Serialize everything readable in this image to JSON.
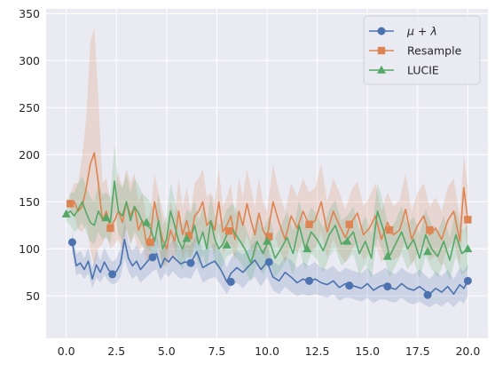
{
  "chart_data": {
    "type": "line",
    "x_ticks": [
      "0.0",
      "2.5",
      "5.0",
      "7.5",
      "10.0",
      "12.5",
      "15.0",
      "17.5",
      "20.0"
    ],
    "y_ticks": [
      "50",
      "100",
      "150",
      "200",
      "250",
      "300",
      "350"
    ],
    "xlim": [
      -1.0,
      21.0
    ],
    "ylim": [
      5,
      355
    ],
    "grid": true,
    "legend_position": "top-right",
    "colors": {
      "background": "#eaeaf2",
      "grid": "#ffffff",
      "text": "#262626"
    },
    "series": [
      {
        "name": "μ + λ",
        "label_prefix": "μ",
        "label_suffix": " + λ",
        "color": "#4c72b0",
        "marker": "circle",
        "x": [
          0.3,
          0.5,
          0.7,
          0.9,
          1.1,
          1.3,
          1.5,
          1.7,
          1.9,
          2.1,
          2.3,
          2.5,
          2.7,
          2.9,
          3.1,
          3.3,
          3.5,
          3.7,
          3.9,
          4.1,
          4.3,
          4.5,
          4.7,
          4.9,
          5.1,
          5.3,
          5.5,
          5.7,
          5.9,
          6.2,
          6.5,
          6.8,
          7.1,
          7.4,
          7.7,
          8.0,
          8.2,
          8.5,
          8.8,
          9.1,
          9.4,
          9.7,
          10.0,
          10.3,
          10.6,
          10.9,
          11.2,
          11.5,
          11.8,
          12.1,
          12.4,
          12.7,
          13.0,
          13.3,
          13.6,
          13.9,
          14.1,
          14.4,
          14.7,
          15.0,
          15.3,
          15.6,
          15.9,
          16.1,
          16.4,
          16.7,
          17.0,
          17.3,
          17.6,
          17.9,
          18.1,
          18.4,
          18.7,
          19.0,
          19.3,
          19.6,
          19.8,
          20.0
        ],
        "y": [
          107,
          82,
          85,
          78,
          87,
          68,
          83,
          75,
          86,
          78,
          73,
          76,
          84,
          110,
          90,
          82,
          87,
          78,
          83,
          88,
          92,
          95,
          80,
          90,
          86,
          92,
          88,
          84,
          86,
          85,
          97,
          80,
          84,
          87,
          78,
          65,
          74,
          80,
          75,
          82,
          88,
          78,
          86,
          70,
          66,
          75,
          70,
          64,
          68,
          65,
          68,
          64,
          62,
          66,
          59,
          63,
          62,
          60,
          58,
          63,
          56,
          60,
          62,
          59,
          57,
          63,
          58,
          56,
          60,
          55,
          52,
          58,
          54,
          60,
          52,
          62,
          58,
          66
        ],
        "band_lo": [
          96,
          72,
          74,
          68,
          74,
          58,
          70,
          64,
          72,
          66,
          62,
          64,
          70,
          90,
          76,
          68,
          72,
          64,
          68,
          72,
          76,
          78,
          66,
          74,
          70,
          76,
          72,
          68,
          70,
          68,
          80,
          64,
          68,
          70,
          62,
          52,
          60,
          64,
          58,
          66,
          70,
          60,
          70,
          56,
          52,
          60,
          54,
          50,
          52,
          50,
          52,
          50,
          48,
          52,
          45,
          48,
          48,
          46,
          44,
          48,
          42,
          46,
          46,
          44,
          43,
          48,
          43,
          41,
          44,
          40,
          38,
          42,
          39,
          44,
          38,
          45,
          42,
          50
        ],
        "band_hi": [
          118,
          94,
          98,
          90,
          102,
          80,
          98,
          88,
          102,
          92,
          86,
          90,
          100,
          132,
          106,
          98,
          104,
          94,
          100,
          106,
          110,
          114,
          96,
          108,
          104,
          110,
          106,
          102,
          104,
          104,
          116,
          98,
          102,
          106,
          96,
          80,
          90,
          98,
          94,
          100,
          108,
          98,
          104,
          86,
          82,
          92,
          88,
          80,
          86,
          82,
          86,
          80,
          78,
          82,
          75,
          80,
          78,
          76,
          74,
          80,
          72,
          76,
          80,
          76,
          73,
          80,
          75,
          73,
          78,
          72,
          68,
          76,
          71,
          78,
          68,
          80,
          76,
          84
        ],
        "markers_x": [
          0.3,
          2.3,
          4.3,
          6.2,
          8.2,
          10.1,
          12.1,
          14.1,
          16.0,
          18.0,
          20.0
        ],
        "markers_y": [
          107,
          73,
          91,
          85,
          65,
          86,
          66,
          61,
          60,
          51,
          66
        ]
      },
      {
        "name": "Resample",
        "label_prefix": "Resample",
        "label_suffix": "",
        "color": "#dd8452",
        "marker": "square",
        "x": [
          0.2,
          0.4,
          0.6,
          0.8,
          1.0,
          1.2,
          1.4,
          1.6,
          1.8,
          2.0,
          2.2,
          2.4,
          2.6,
          2.8,
          3.0,
          3.2,
          3.4,
          3.6,
          3.8,
          4.0,
          4.2,
          4.4,
          4.6,
          4.8,
          5.0,
          5.2,
          5.4,
          5.6,
          5.8,
          6.0,
          6.2,
          6.4,
          6.6,
          6.8,
          7.0,
          7.2,
          7.4,
          7.6,
          7.8,
          8.0,
          8.2,
          8.4,
          8.6,
          8.8,
          9.0,
          9.2,
          9.4,
          9.6,
          9.8,
          10.0,
          10.3,
          10.6,
          10.9,
          11.2,
          11.5,
          11.8,
          12.1,
          12.4,
          12.7,
          13.0,
          13.3,
          13.6,
          13.9,
          14.2,
          14.5,
          14.8,
          15.1,
          15.4,
          15.7,
          16.0,
          16.3,
          16.6,
          16.9,
          17.2,
          17.5,
          17.8,
          18.1,
          18.4,
          18.7,
          19.0,
          19.3,
          19.6,
          19.8,
          20.0
        ],
        "y": [
          148,
          150,
          140,
          145,
          165,
          190,
          202,
          170,
          130,
          140,
          122,
          130,
          140,
          128,
          150,
          135,
          145,
          120,
          130,
          105,
          115,
          150,
          128,
          110,
          100,
          120,
          108,
          140,
          115,
          130,
          112,
          135,
          140,
          150,
          125,
          130,
          120,
          150,
          118,
          125,
          135,
          110,
          140,
          125,
          148,
          130,
          115,
          138,
          120,
          112,
          150,
          128,
          110,
          135,
          122,
          140,
          125,
          130,
          150,
          118,
          140,
          125,
          112,
          128,
          138,
          115,
          122,
          135,
          110,
          128,
          115,
          120,
          142,
          110,
          125,
          135,
          115,
          122,
          110,
          130,
          140,
          108,
          165,
          130
        ],
        "band_lo": [
          138,
          135,
          120,
          118,
          125,
          100,
          80,
          100,
          105,
          115,
          100,
          105,
          110,
          100,
          120,
          105,
          115,
          95,
          105,
          85,
          95,
          120,
          100,
          85,
          80,
          95,
          85,
          110,
          90,
          100,
          90,
          105,
          110,
          120,
          100,
          105,
          95,
          120,
          95,
          100,
          105,
          88,
          110,
          100,
          115,
          100,
          90,
          108,
          95,
          88,
          118,
          100,
          85,
          105,
          95,
          110,
          95,
          100,
          118,
          90,
          110,
          95,
          85,
          98,
          108,
          88,
          95,
          105,
          85,
          98,
          88,
          92,
          110,
          82,
          95,
          105,
          88,
          92,
          82,
          100,
          108,
          82,
          130,
          100
        ],
        "band_hi": [
          158,
          170,
          170,
          200,
          240,
          320,
          335,
          260,
          170,
          175,
          150,
          165,
          180,
          165,
          185,
          170,
          180,
          150,
          160,
          130,
          140,
          180,
          160,
          140,
          125,
          150,
          135,
          175,
          145,
          165,
          140,
          170,
          175,
          185,
          155,
          160,
          150,
          185,
          145,
          155,
          170,
          135,
          175,
          155,
          185,
          165,
          145,
          175,
          150,
          140,
          190,
          160,
          140,
          170,
          155,
          175,
          160,
          165,
          190,
          150,
          175,
          160,
          142,
          162,
          172,
          145,
          155,
          170,
          140,
          160,
          145,
          152,
          180,
          140,
          160,
          170,
          145,
          155,
          140,
          165,
          175,
          135,
          200,
          165
        ],
        "markers_x": [
          0.2,
          2.2,
          4.2,
          6.1,
          8.1,
          10.1,
          12.1,
          14.1,
          16.1,
          18.1,
          20.0
        ],
        "markers_y": [
          148,
          122,
          107,
          114,
          119,
          113,
          126,
          126,
          120,
          120,
          131
        ]
      },
      {
        "name": "LUCIE",
        "label_prefix": "LUCIE",
        "label_suffix": "",
        "color": "#55a868",
        "marker": "triangle",
        "x": [
          0.0,
          0.2,
          0.4,
          0.6,
          0.8,
          1.0,
          1.2,
          1.4,
          1.6,
          1.8,
          2.0,
          2.2,
          2.4,
          2.6,
          2.8,
          3.0,
          3.2,
          3.4,
          3.6,
          3.8,
          4.0,
          4.2,
          4.4,
          4.6,
          4.8,
          5.0,
          5.2,
          5.4,
          5.6,
          5.8,
          6.0,
          6.2,
          6.4,
          6.6,
          6.8,
          7.0,
          7.2,
          7.4,
          7.6,
          7.8,
          8.0,
          8.3,
          8.6,
          8.9,
          9.2,
          9.5,
          9.8,
          10.1,
          10.4,
          10.7,
          11.0,
          11.3,
          11.6,
          11.9,
          12.2,
          12.5,
          12.8,
          13.1,
          13.4,
          13.7,
          14.0,
          14.3,
          14.6,
          14.9,
          15.2,
          15.5,
          15.8,
          16.1,
          16.4,
          16.7,
          17.0,
          17.3,
          17.6,
          17.9,
          18.2,
          18.5,
          18.8,
          19.1,
          19.4,
          19.7,
          20.0
        ],
        "y": [
          137,
          140,
          135,
          142,
          150,
          138,
          128,
          125,
          140,
          132,
          133,
          128,
          172,
          140,
          135,
          150,
          130,
          145,
          138,
          128,
          125,
          122,
          108,
          130,
          100,
          110,
          140,
          125,
          108,
          100,
          115,
          112,
          125,
          105,
          118,
          100,
          130,
          110,
          100,
          105,
          115,
          120,
          110,
          100,
          85,
          108,
          95,
          110,
          90,
          100,
          112,
          95,
          125,
          100,
          118,
          110,
          98,
          115,
          125,
          105,
          110,
          118,
          95,
          108,
          90,
          140,
          120,
          92,
          105,
          118,
          100,
          110,
          90,
          115,
          100,
          92,
          108,
          88,
          115,
          95,
          100
        ],
        "band_lo": [
          130,
          125,
          118,
          122,
          128,
          118,
          108,
          105,
          118,
          110,
          112,
          105,
          140,
          115,
          110,
          122,
          105,
          118,
          112,
          102,
          100,
          98,
          85,
          105,
          80,
          88,
          112,
          100,
          85,
          78,
          92,
          90,
          100,
          82,
          95,
          78,
          105,
          88,
          78,
          82,
          92,
          95,
          88,
          78,
          65,
          85,
          72,
          88,
          70,
          78,
          90,
          72,
          100,
          78,
          95,
          88,
          75,
          92,
          100,
          82,
          88,
          95,
          72,
          85,
          68,
          112,
          95,
          70,
          82,
          95,
          78,
          88,
          68,
          92,
          78,
          70,
          85,
          66,
          92,
          72,
          78
        ],
        "band_hi": [
          144,
          160,
          160,
          170,
          178,
          165,
          155,
          150,
          170,
          158,
          160,
          155,
          210,
          170,
          165,
          180,
          160,
          175,
          168,
          158,
          155,
          150,
          135,
          158,
          125,
          135,
          170,
          152,
          135,
          125,
          142,
          138,
          152,
          130,
          145,
          125,
          158,
          135,
          125,
          130,
          142,
          148,
          135,
          125,
          108,
          135,
          120,
          135,
          112,
          125,
          140,
          120,
          152,
          125,
          145,
          135,
          122,
          142,
          152,
          130,
          135,
          145,
          120,
          135,
          115,
          170,
          148,
          118,
          130,
          145,
          125,
          135,
          115,
          142,
          125,
          118,
          135,
          112,
          142,
          120,
          125
        ],
        "markers_x": [
          0.0,
          2.0,
          4.0,
          6.0,
          8.0,
          10.0,
          12.0,
          14.0,
          16.0,
          18.0,
          20.0
        ],
        "markers_y": [
          137,
          133,
          128,
          111,
          104,
          108,
          100,
          108,
          92,
          97,
          100
        ]
      }
    ]
  }
}
